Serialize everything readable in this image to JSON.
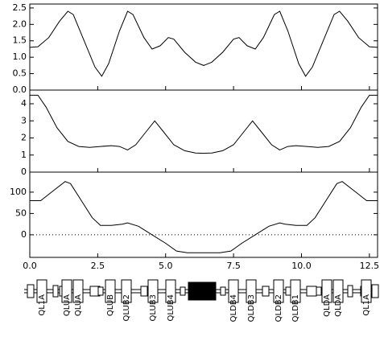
{
  "chart_data": [
    {
      "type": "line",
      "xlim": [
        0,
        12.8
      ],
      "ylim": [
        0,
        2.62
      ],
      "yticks": [
        {
          "value": 0,
          "label": "0.0"
        },
        0.5,
        {
          "value": 1,
          "label": "1.0"
        },
        1.5,
        {
          "value": 2,
          "label": "2.0"
        },
        2.5
      ],
      "x": [
        0,
        0.3,
        0.7,
        1.1,
        1.4,
        1.6,
        2.0,
        2.4,
        2.65,
        2.9,
        3.3,
        3.6,
        3.8,
        4.2,
        4.5,
        4.8,
        5.1,
        5.3,
        5.7,
        6.1,
        6.4,
        6.7,
        7.1,
        7.5,
        7.7,
        8.0,
        8.3,
        8.6,
        9.0,
        9.2,
        9.5,
        9.9,
        10.15,
        10.4,
        10.8,
        11.2,
        11.4,
        11.7,
        12.1,
        12.5,
        12.8
      ],
      "values": [
        1.3,
        1.32,
        1.6,
        2.1,
        2.4,
        2.3,
        1.5,
        0.7,
        0.42,
        0.8,
        1.8,
        2.4,
        2.3,
        1.6,
        1.25,
        1.35,
        1.6,
        1.55,
        1.15,
        0.85,
        0.75,
        0.85,
        1.15,
        1.55,
        1.6,
        1.35,
        1.25,
        1.6,
        2.3,
        2.4,
        1.8,
        0.8,
        0.42,
        0.7,
        1.5,
        2.3,
        2.4,
        2.1,
        1.6,
        1.32,
        1.3
      ]
    },
    {
      "type": "line",
      "xlim": [
        0,
        12.8
      ],
      "ylim": [
        0,
        4.8
      ],
      "yticks": [
        0,
        1,
        2,
        3,
        4
      ],
      "x": [
        0,
        0.3,
        0.6,
        1.0,
        1.4,
        1.8,
        2.2,
        2.6,
        3.0,
        3.3,
        3.6,
        3.9,
        4.3,
        4.6,
        4.9,
        5.3,
        5.7,
        6.1,
        6.4,
        6.7,
        7.1,
        7.5,
        7.9,
        8.2,
        8.5,
        8.9,
        9.2,
        9.5,
        9.8,
        10.2,
        10.6,
        11.0,
        11.4,
        11.8,
        12.2,
        12.5,
        12.8
      ],
      "values": [
        4.5,
        4.5,
        3.8,
        2.6,
        1.8,
        1.5,
        1.45,
        1.5,
        1.55,
        1.5,
        1.3,
        1.6,
        2.4,
        3.0,
        2.4,
        1.6,
        1.25,
        1.12,
        1.1,
        1.12,
        1.25,
        1.6,
        2.4,
        3.0,
        2.4,
        1.6,
        1.3,
        1.5,
        1.55,
        1.5,
        1.45,
        1.5,
        1.8,
        2.6,
        3.8,
        4.5,
        4.5
      ]
    },
    {
      "type": "line",
      "xlim": [
        0,
        12.8
      ],
      "ylim": [
        -53,
        147
      ],
      "yticks": [
        0,
        50,
        100
      ],
      "zero_line": true,
      "xticks": [
        {
          "value": 0,
          "label": "0.0"
        },
        2.5,
        {
          "value": 5,
          "label": "5.0"
        },
        7.5,
        {
          "value": 10,
          "label": "10.0"
        },
        12.5
      ],
      "x": [
        0,
        0.4,
        0.8,
        1.3,
        1.5,
        1.9,
        2.3,
        2.6,
        3.0,
        3.4,
        3.6,
        4.0,
        4.5,
        5.0,
        5.4,
        5.8,
        6.4,
        7.0,
        7.4,
        7.8,
        8.3,
        8.8,
        9.2,
        9.4,
        9.8,
        10.2,
        10.5,
        10.9,
        11.3,
        11.5,
        12.0,
        12.4,
        12.8
      ],
      "values": [
        80,
        80,
        100,
        125,
        120,
        80,
        40,
        22,
        22,
        25,
        28,
        20,
        0,
        -20,
        -38,
        -42,
        -42,
        -42,
        -38,
        -20,
        0,
        20,
        28,
        25,
        22,
        22,
        40,
        80,
        120,
        125,
        100,
        80,
        80
      ]
    }
  ],
  "lattice": {
    "labels": [
      "QL1A",
      "QLUA",
      "QLUA",
      "QLUB",
      "QLUB2",
      "QLUB3",
      "QLUB4",
      "QLDB4",
      "QLDB3",
      "QLDB2",
      "QLDB1",
      "QLDA",
      "QLDA",
      "QL1A"
    ]
  }
}
